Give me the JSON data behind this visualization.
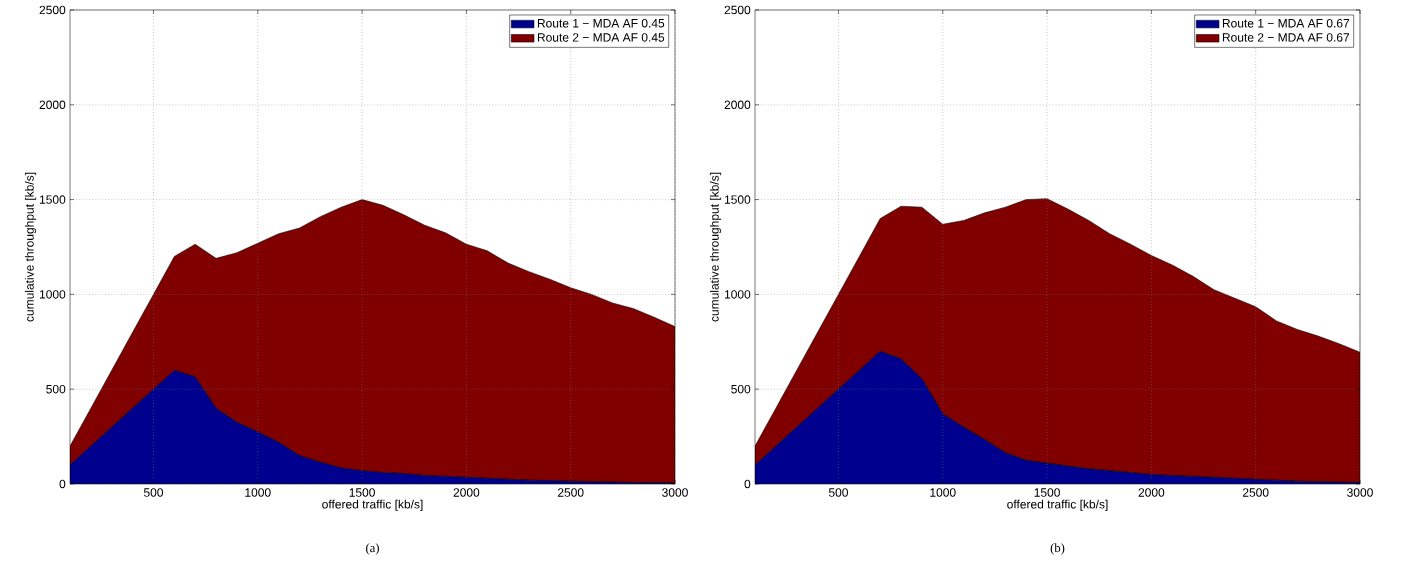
{
  "chart_data": [
    {
      "type": "area",
      "stacked": true,
      "xlabel": "offered traffic [kb/s]",
      "ylabel": "cumulative throughput [kb/s]",
      "x": [
        100,
        200,
        300,
        400,
        500,
        600,
        700,
        800,
        900,
        1000,
        1100,
        1200,
        1300,
        1400,
        1500,
        1600,
        1700,
        1800,
        1900,
        2000,
        2100,
        2200,
        2300,
        2400,
        2500,
        2600,
        2700,
        2800,
        2900,
        3000
      ],
      "xlim": [
        100,
        3000
      ],
      "xticks": [
        500,
        1000,
        1500,
        2000,
        2500,
        3000
      ],
      "ylim": [
        0,
        2500
      ],
      "yticks": [
        0,
        500,
        1000,
        1500,
        2000,
        2500
      ],
      "grid": true,
      "legend": "top right",
      "series": [
        {
          "name": "Route 1 − MDA AF 0.45",
          "color": "#00008f",
          "values": [
            100,
            200,
            300,
            400,
            500,
            600,
            565,
            400,
            325,
            275,
            220,
            150,
            115,
            85,
            70,
            60,
            55,
            45,
            40,
            35,
            30,
            25,
            20,
            18,
            15,
            12,
            10,
            8,
            7,
            5
          ]
        },
        {
          "name": "Route 2 − MDA AF 0.45",
          "color": "#800000",
          "values": [
            100,
            200,
            300,
            400,
            500,
            600,
            700,
            790,
            895,
            995,
            1100,
            1200,
            1295,
            1375,
            1430,
            1410,
            1365,
            1320,
            1285,
            1230,
            1200,
            1140,
            1100,
            1062,
            1020,
            988,
            945,
            917,
            873,
            825
          ]
        }
      ],
      "annotations": [
        "(a)"
      ]
    },
    {
      "type": "area",
      "stacked": true,
      "xlabel": "offered traffic [kb/s]",
      "ylabel": "cumulative throughput [kb/s]",
      "x": [
        100,
        200,
        300,
        400,
        500,
        600,
        700,
        800,
        900,
        1000,
        1100,
        1200,
        1300,
        1400,
        1500,
        1600,
        1700,
        1800,
        1900,
        2000,
        2100,
        2200,
        2300,
        2400,
        2500,
        2600,
        2700,
        2800,
        2900,
        3000
      ],
      "xlim": [
        100,
        3000
      ],
      "xticks": [
        500,
        1000,
        1500,
        2000,
        2500,
        3000
      ],
      "ylim": [
        0,
        2500
      ],
      "yticks": [
        0,
        500,
        1000,
        1500,
        2000,
        2500
      ],
      "grid": true,
      "legend": "top right",
      "series": [
        {
          "name": "Route 1 − MDA AF 0.67",
          "color": "#00008f",
          "values": [
            100,
            200,
            300,
            400,
            500,
            600,
            700,
            660,
            555,
            370,
            300,
            235,
            165,
            125,
            110,
            95,
            80,
            70,
            60,
            50,
            45,
            40,
            35,
            30,
            25,
            20,
            15,
            12,
            10,
            8
          ]
        },
        {
          "name": "Route 2 − MDA AF 0.67",
          "color": "#800000",
          "values": [
            100,
            200,
            300,
            400,
            500,
            600,
            700,
            805,
            905,
            1000,
            1090,
            1195,
            1295,
            1375,
            1395,
            1355,
            1310,
            1250,
            1205,
            1155,
            1110,
            1055,
            990,
            950,
            910,
            840,
            800,
            768,
            730,
            687
          ]
        }
      ],
      "annotations": [
        "(b)"
      ]
    }
  ]
}
